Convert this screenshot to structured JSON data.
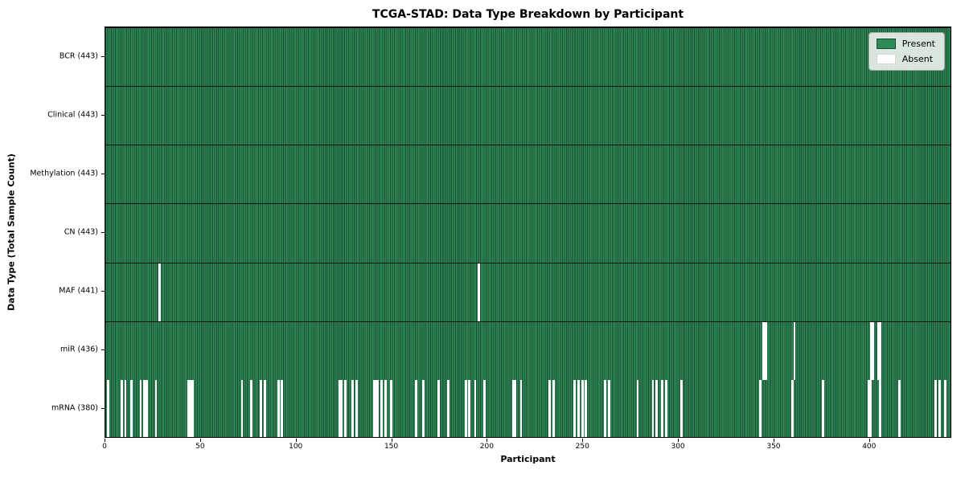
{
  "chart_data": {
    "type": "heatmap",
    "title": "TCGA-STAD: Data Type Breakdown by Participant",
    "xlabel": "Participant",
    "ylabel": "Data Type (Total Sample Count)",
    "n_participants": 443,
    "x_ticks": [
      0,
      50,
      100,
      150,
      200,
      250,
      300,
      350,
      400
    ],
    "legend": [
      {
        "label": "Present",
        "color": "#2e8b57"
      },
      {
        "label": "Absent",
        "color": "#ffffff"
      }
    ],
    "colors": {
      "present": "#2e8b57",
      "present_stripe": "#1b4a31",
      "absent": "#ffffff",
      "row_divider": "rgba(0,0,0,0.85)"
    },
    "rows": [
      {
        "label": "BCR (443)",
        "data_type": "BCR",
        "present_count": 443,
        "absent_participants": []
      },
      {
        "label": "Clinical (443)",
        "data_type": "Clinical",
        "present_count": 443,
        "absent_participants": []
      },
      {
        "label": "Methylation (443)",
        "data_type": "Methylation",
        "present_count": 443,
        "absent_participants": []
      },
      {
        "label": "CN (443)",
        "data_type": "CN",
        "present_count": 443,
        "absent_participants": []
      },
      {
        "label": "MAF (441)",
        "data_type": "MAF",
        "present_count": 441,
        "absent_participants": [
          28,
          195
        ]
      },
      {
        "label": "miR (436)",
        "data_type": "miR",
        "present_count": 436,
        "absent_participants": [
          344,
          345,
          360,
          400,
          401,
          404,
          405
        ]
      },
      {
        "label": "mRNA (380)",
        "data_type": "mRNA",
        "present_count": 380,
        "absent_participants": [
          1,
          8,
          10,
          13,
          18,
          20,
          21,
          26,
          43,
          44,
          45,
          71,
          76,
          81,
          83,
          90,
          92,
          122,
          123,
          125,
          129,
          131,
          140,
          141,
          142,
          144,
          146,
          149,
          162,
          166,
          174,
          179,
          188,
          190,
          193,
          198,
          213,
          214,
          217,
          232,
          234,
          245,
          247,
          249,
          251,
          261,
          263,
          278,
          286,
          288,
          291,
          293,
          301,
          342,
          359,
          375,
          399,
          400,
          405,
          415,
          434,
          436,
          439
        ]
      }
    ]
  }
}
